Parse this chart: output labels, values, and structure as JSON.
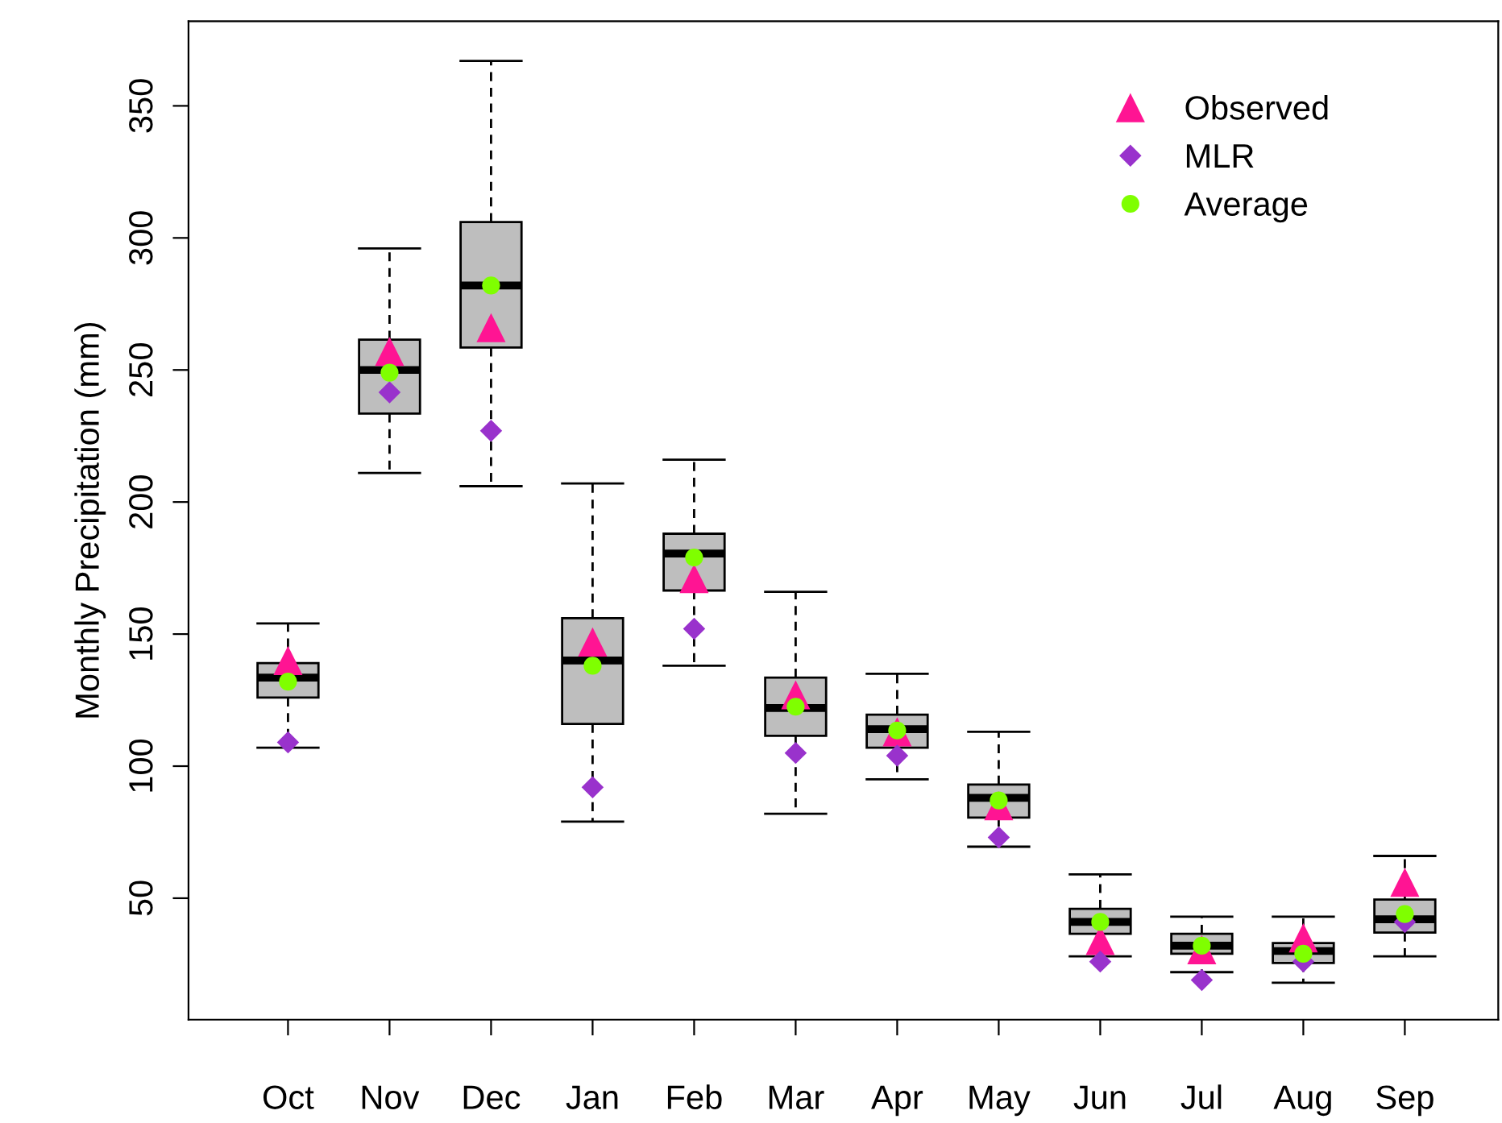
{
  "chart_data": {
    "type": "box",
    "ylabel": "Monthly Precipitation (mm)",
    "categories": [
      "Oct",
      "Nov",
      "Dec",
      "Jan",
      "Feb",
      "Mar",
      "Apr",
      "May",
      "Jun",
      "Jul",
      "Aug",
      "Sep"
    ],
    "color": "#bebebe",
    "boxes": [
      {
        "low": 107,
        "q1": 126,
        "median": 133.5,
        "q3": 139,
        "high": 154
      },
      {
        "low": 211,
        "q1": 233.5,
        "median": 250,
        "q3": 261.5,
        "high": 296
      },
      {
        "low": 206,
        "q1": 258.5,
        "median": 282,
        "q3": 306,
        "high": 367
      },
      {
        "low": 79,
        "q1": 116,
        "median": 140,
        "q3": 156,
        "high": 207
      },
      {
        "low": 138,
        "q1": 166.5,
        "median": 180.5,
        "q3": 188,
        "high": 216
      },
      {
        "low": 82,
        "q1": 111.5,
        "median": 122,
        "q3": 133.5,
        "high": 166
      },
      {
        "low": 95,
        "q1": 107,
        "median": 114,
        "q3": 119.5,
        "high": 135
      },
      {
        "low": 69.5,
        "q1": 80.5,
        "median": 88,
        "q3": 93,
        "high": 113
      },
      {
        "low": 28,
        "q1": 36.5,
        "median": 41,
        "q3": 46,
        "high": 59
      },
      {
        "low": 22,
        "q1": 29,
        "median": 32,
        "q3": 36.5,
        "high": 43
      },
      {
        "low": 18,
        "q1": 25.5,
        "median": 30,
        "q3": 33,
        "high": 43
      },
      {
        "low": 28,
        "q1": 37,
        "median": 42,
        "q3": 49.5,
        "high": 66
      }
    ],
    "series": [
      {
        "name": "Observed",
        "type": "scatter",
        "marker": "triangle",
        "color": "#ff1493",
        "x": [
          "Oct",
          "Nov",
          "Dec",
          "Jan",
          "Feb",
          "Mar",
          "Apr",
          "May",
          "Jun",
          "Jul",
          "Aug",
          "Sep"
        ],
        "values": [
          140,
          257,
          266,
          147,
          171,
          127,
          113,
          85,
          34,
          30.5,
          35,
          56
        ]
      },
      {
        "name": "MLR",
        "type": "scatter",
        "marker": "diamond",
        "color": "#9932cc",
        "x": [
          "Oct",
          "Nov",
          "Dec",
          "Jan",
          "Feb",
          "Mar",
          "Apr",
          "May",
          "Jun",
          "Jul",
          "Aug",
          "Sep"
        ],
        "values": [
          109,
          241.5,
          227,
          92,
          152,
          105,
          104,
          73,
          26,
          19,
          26,
          41
        ]
      },
      {
        "name": "Average",
        "type": "scatter",
        "marker": "circle",
        "color": "#7fff00",
        "x": [
          "Oct",
          "Nov",
          "Dec",
          "Jan",
          "Feb",
          "Mar",
          "Apr",
          "May",
          "Jun",
          "Jul",
          "Aug",
          "Sep"
        ],
        "values": [
          132,
          249,
          282,
          138,
          179,
          122.5,
          113.5,
          87,
          41,
          32,
          29,
          44
        ]
      }
    ],
    "ylim": [
      4,
      382
    ],
    "yticks": [
      50,
      100,
      150,
      200,
      250,
      300,
      350
    ],
    "grid": false,
    "legend": "top right"
  }
}
